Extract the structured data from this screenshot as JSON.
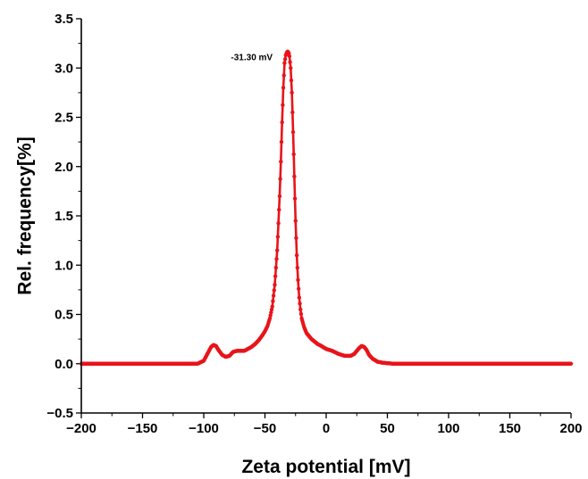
{
  "chart_data": {
    "type": "line",
    "title": "",
    "xlabel": "Zeta potential [mV]",
    "ylabel": "Rel. frequency[%]",
    "xlim": [
      -200,
      200
    ],
    "ylim": [
      -0.5,
      3.5
    ],
    "x_ticks": [
      "−200",
      "−150",
      "−100",
      "−50",
      "0",
      "50",
      "100",
      "150",
      "200"
    ],
    "y_ticks": [
      "−0.5",
      "0.0",
      "0.5",
      "1.0",
      "1.5",
      "2.0",
      "2.5",
      "3.0",
      "3.5"
    ],
    "grid": false,
    "legend": "none",
    "annotation": {
      "text": "-31.30 mV",
      "x": -31.3,
      "y": 3.15
    },
    "series": [
      {
        "color": "#e8141a",
        "marker": "circle",
        "x": [
          -200,
          -105,
          -100,
          -97,
          -94,
          -92,
          -90,
          -88,
          -85,
          -82,
          -79,
          -76,
          -73,
          -70,
          -67,
          -64,
          -61,
          -58,
          -55,
          -52,
          -50,
          -48,
          -46,
          -44,
          -42,
          -40,
          -38,
          -37,
          -36,
          -35,
          -34,
          -33,
          -32,
          -31.3,
          -30.5,
          -30,
          -29,
          -28,
          -27,
          -26,
          -25,
          -24,
          -23,
          -22,
          -21,
          -20,
          -18,
          -16,
          -14,
          -12,
          -10,
          -7,
          -4,
          0,
          5,
          10,
          15,
          20,
          23,
          25,
          27,
          29,
          31,
          33,
          35,
          38,
          42,
          46,
          50,
          55,
          200
        ],
        "y": [
          0,
          0,
          0.03,
          0.1,
          0.17,
          0.19,
          0.18,
          0.14,
          0.09,
          0.07,
          0.08,
          0.12,
          0.13,
          0.13,
          0.13,
          0.15,
          0.17,
          0.2,
          0.24,
          0.29,
          0.33,
          0.38,
          0.46,
          0.58,
          0.8,
          1.15,
          1.7,
          2.05,
          2.45,
          2.8,
          3.05,
          3.13,
          3.16,
          3.17,
          3.15,
          3.12,
          3.0,
          2.75,
          2.35,
          1.9,
          1.45,
          1.1,
          0.85,
          0.67,
          0.55,
          0.46,
          0.37,
          0.31,
          0.28,
          0.25,
          0.23,
          0.2,
          0.18,
          0.15,
          0.13,
          0.1,
          0.08,
          0.08,
          0.1,
          0.13,
          0.16,
          0.18,
          0.17,
          0.14,
          0.09,
          0.05,
          0.02,
          0.01,
          0.005,
          0,
          0
        ]
      }
    ]
  }
}
